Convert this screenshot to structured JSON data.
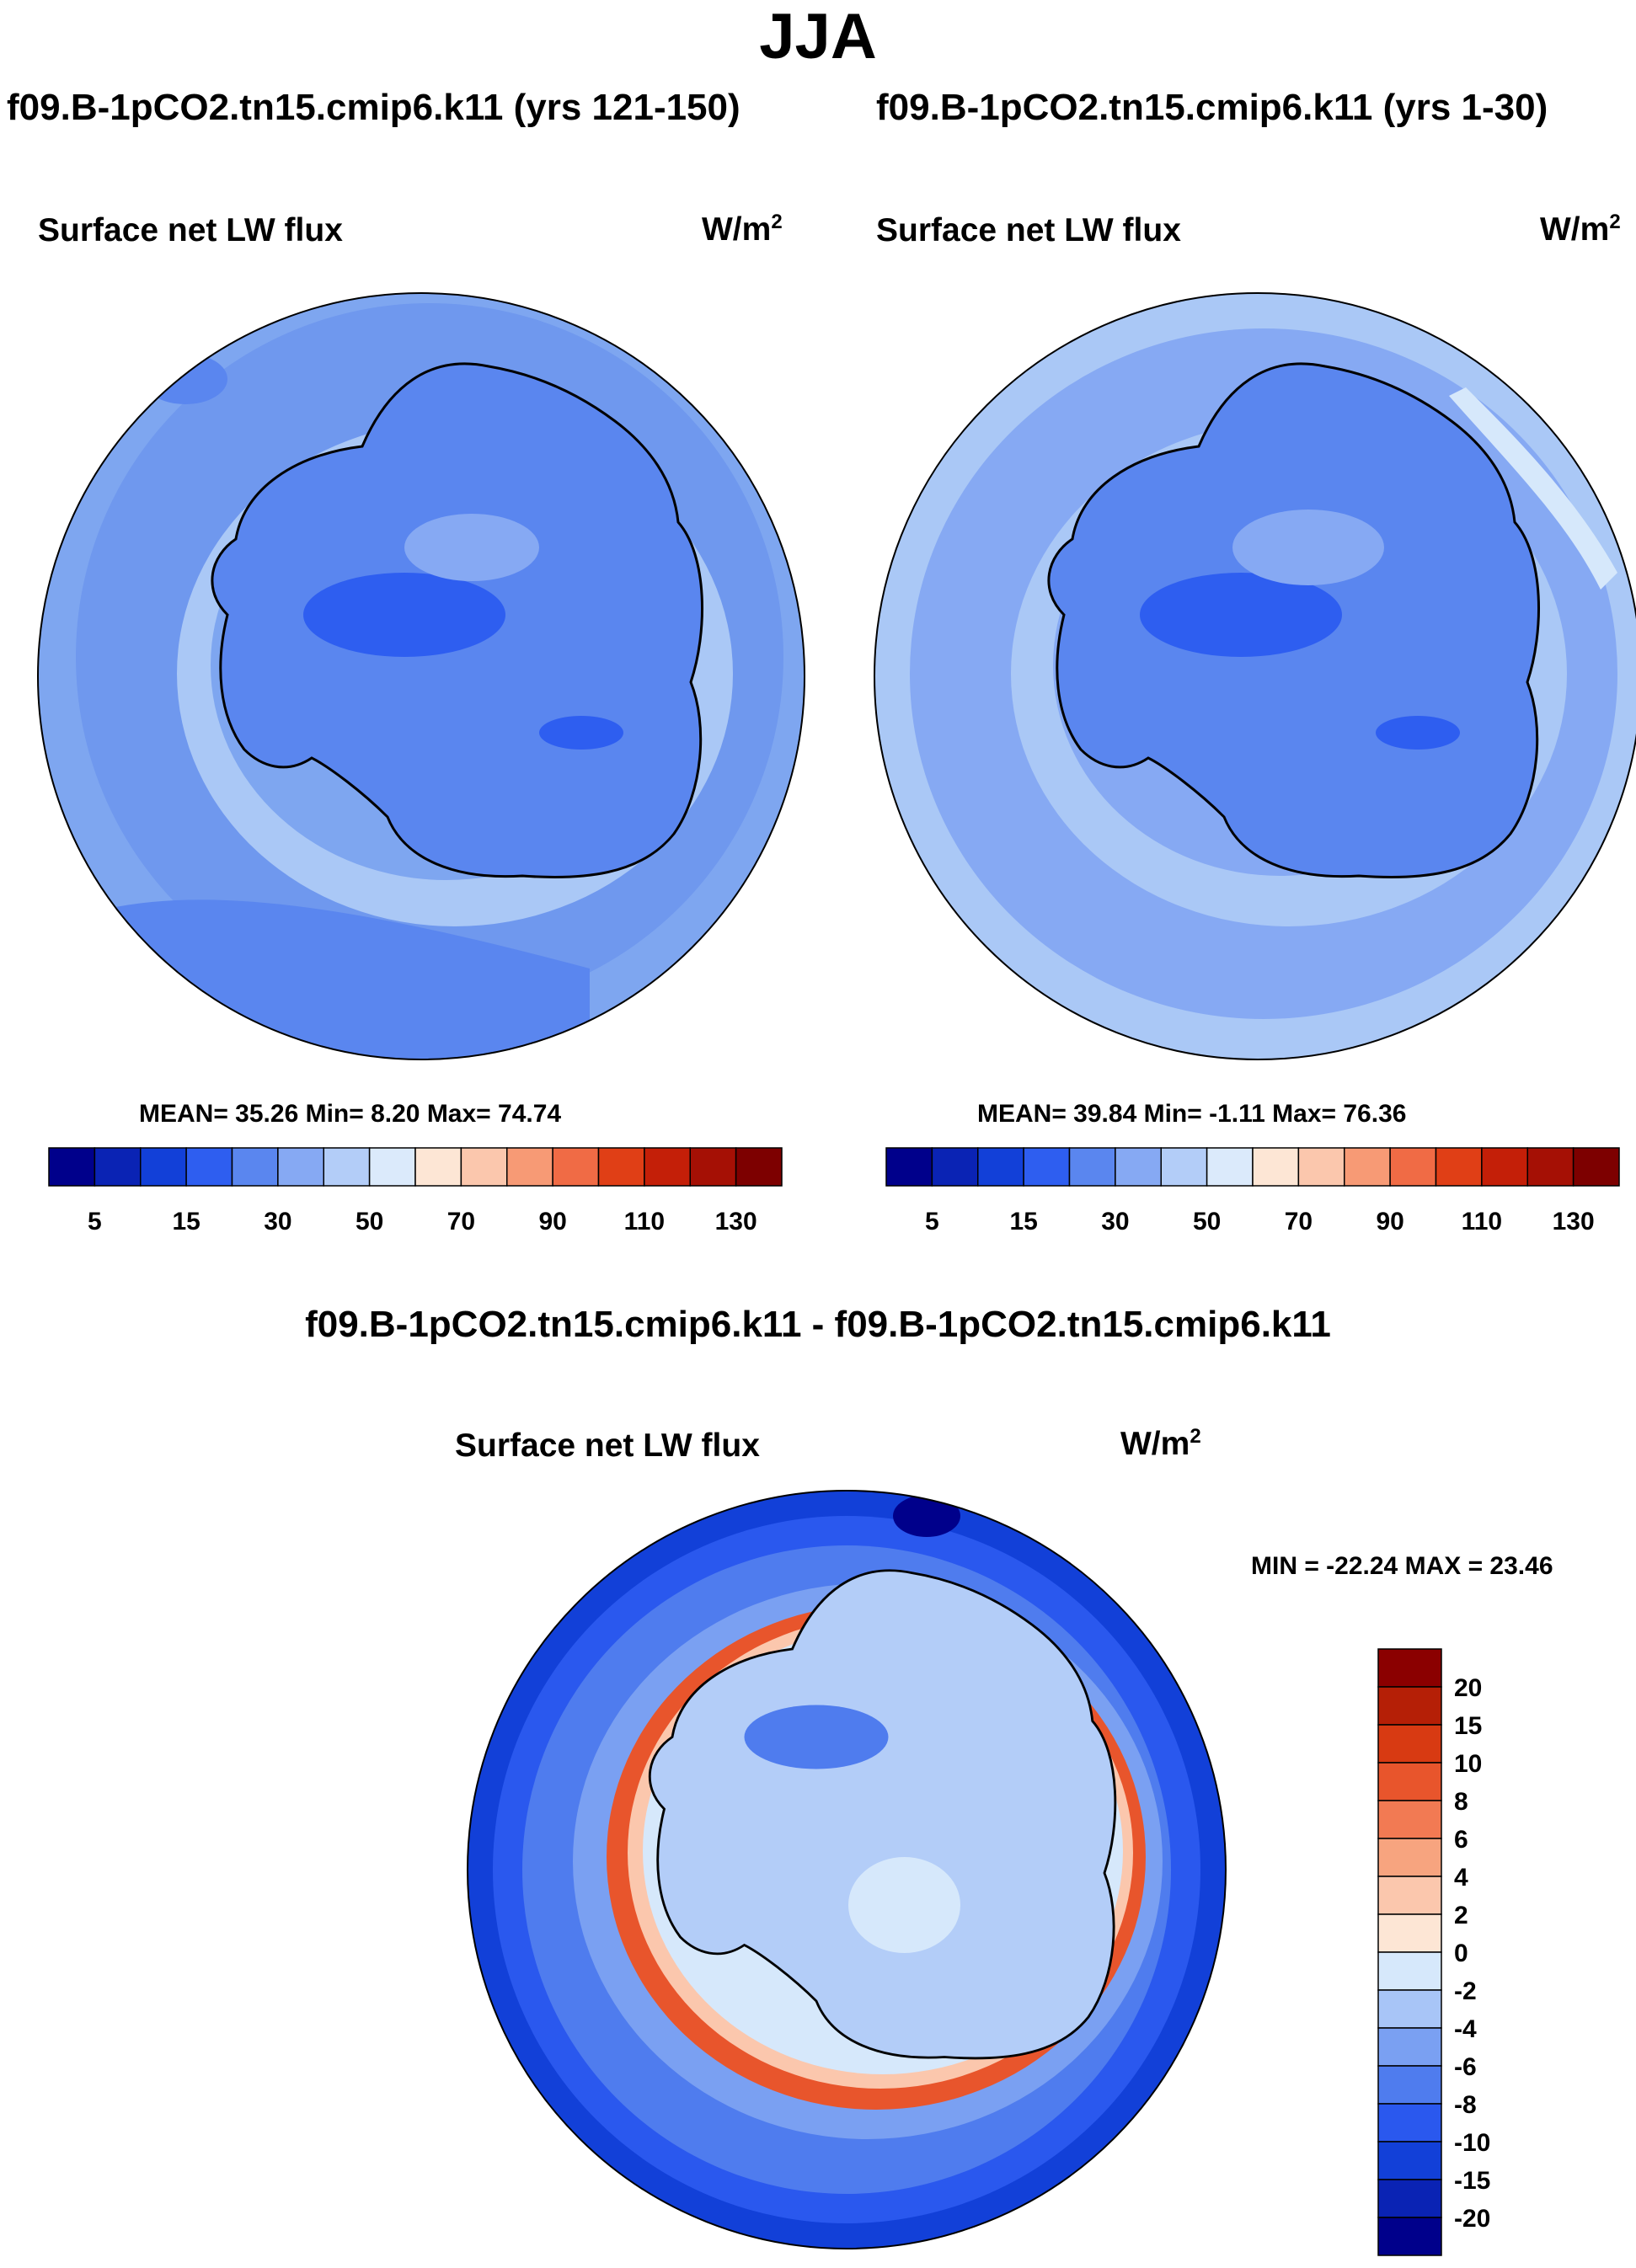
{
  "title": "JJA",
  "colors": {
    "land_outline": "#000000",
    "sea_blue_dark": "#4a79e6",
    "sea_blue_mid": "#7ea6f0",
    "sea_blue_light": "#aac8f6",
    "pale": "#d6e8fb"
  },
  "panels": [
    {
      "run_title": "f09.B-1pCO2.tn15.cmip6.k11 (yrs 121-150)",
      "field": "Surface net LW flux",
      "units_base": "W/m",
      "units_exp": "2",
      "stats": "MEAN=  35.26  Min=   8.20  Max=  74.74"
    },
    {
      "run_title": "f09.B-1pCO2.tn15.cmip6.k11 (yrs 1-30)",
      "field": "Surface net LW flux",
      "units_base": "W/m",
      "units_exp": "2",
      "stats": "MEAN=  39.84  Min=  -1.11  Max=  76.36"
    }
  ],
  "diff_panel": {
    "title": "f09.B-1pCO2.tn15.cmip6.k11 - f09.B-1pCO2.tn15.cmip6.k11",
    "field": "Surface net LW flux",
    "units_base": "W/m",
    "units_exp": "2",
    "stats": "MIN = -22.24 MAX =  23.46"
  },
  "abs_colorbar": {
    "colors": [
      "#00008b",
      "#0a23b4",
      "#1240d8",
      "#2e5ef0",
      "#5a86ef",
      "#86a9f3",
      "#b3cdf8",
      "#dbeafb",
      "#fde6d5",
      "#fbc7ad",
      "#f79a75",
      "#f06b45",
      "#e03f16",
      "#c41f08",
      "#a51005",
      "#7d0000"
    ],
    "labels": [
      "5",
      "15",
      "30",
      "50",
      "70",
      "90",
      "110",
      "130"
    ]
  },
  "diff_colorbar": {
    "colors": [
      "#00008b",
      "#0a23b4",
      "#1240d8",
      "#2a58ee",
      "#4f7cee",
      "#7aa0f2",
      "#a8c5f7",
      "#d6e8fb",
      "#fde6d5",
      "#fbc7ad",
      "#f7a47f",
      "#f27a53",
      "#e8552c",
      "#d83a12",
      "#b51f06",
      "#8b0000"
    ],
    "labels": [
      "20",
      "15",
      "10",
      "8",
      "6",
      "4",
      "2",
      "0",
      "-2",
      "-4",
      "-6",
      "-8",
      "-10",
      "-15",
      "-20"
    ]
  }
}
